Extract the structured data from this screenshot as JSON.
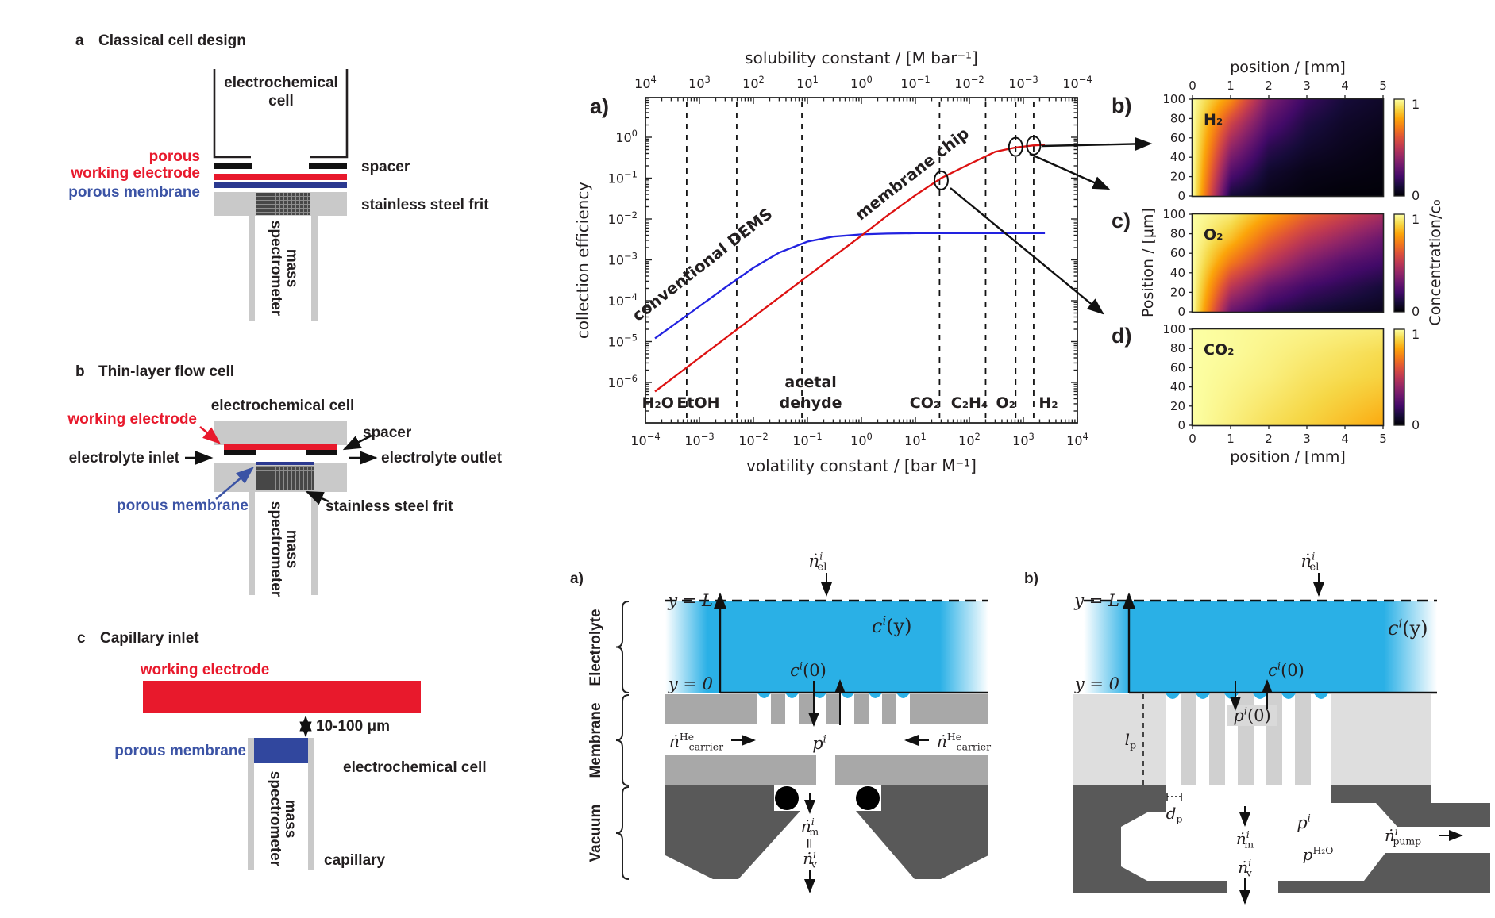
{
  "left_panels": {
    "panel_a": {
      "tag": "a",
      "title": "Classical cell design",
      "cell_label_line1": "electrochemical",
      "cell_label_line2": "cell",
      "porous_line1": "porous",
      "porous_line2": "working electrode",
      "membrane_label": "porous membrane",
      "spacer_label": "spacer",
      "frit_label": "stainless steel frit",
      "ms_line1": "mass",
      "ms_line2": "spectrometer"
    },
    "panel_b": {
      "tag": "b",
      "title": "Thin-layer flow cell",
      "cell_label": "electrochemical cell",
      "we_label": "working electrode",
      "inlet_label": "electrolyte inlet",
      "outlet_label": "electrolyte outlet",
      "spacer_label": "spacer",
      "membrane_label": "porous membrane",
      "frit_label": "stainless steel frit",
      "ms_line1": "mass",
      "ms_line2": "spectrometer"
    },
    "panel_c": {
      "tag": "c",
      "title": "Capillary inlet",
      "we_label": "working electrode",
      "gap_label": "10-100 μm",
      "membrane_label": "porous membrane",
      "cell_label": "electrochemical cell",
      "capillary_label": "capillary",
      "ms_line1": "mass",
      "ms_line2": "spectrometer"
    }
  },
  "chart_data": [
    {
      "type": "line",
      "panel_label": "a)",
      "x_bottom": {
        "label": "volatility constant / [bar M⁻¹]",
        "scale": "log",
        "tick_exponents": [
          -4,
          -3,
          -2,
          -1,
          0,
          1,
          2,
          3,
          4
        ],
        "range_exp": [
          -4,
          4
        ]
      },
      "x_top": {
        "label": "solubility constant / [M bar⁻¹]",
        "scale": "log",
        "tick_exponents": [
          4,
          3,
          2,
          1,
          0,
          -1,
          -2,
          -3,
          -4
        ]
      },
      "y_axis": {
        "label": "collection efficiency",
        "scale": "log",
        "tick_exponents": [
          0,
          -1,
          -2,
          -3,
          -4,
          -5,
          -6
        ],
        "range_exp": [
          -7,
          1
        ]
      },
      "series": [
        {
          "name": "conventional DEMS",
          "color": "#2222e0",
          "points": [
            [
              0.00015,
              1.2e-05
            ],
            [
              0.001,
              7.3e-05
            ],
            [
              0.003,
              0.00021
            ],
            [
              0.01,
              0.00064
            ],
            [
              0.03,
              0.0015
            ],
            [
              0.1,
              0.0028
            ],
            [
              0.3,
              0.0037
            ],
            [
              1,
              0.0042
            ],
            [
              3,
              0.0044
            ],
            [
              10,
              0.0045
            ],
            [
              100,
              0.0045
            ],
            [
              2500,
              0.0045
            ]
          ],
          "label_pos": [
            0.0013,
            0.0006
          ],
          "label_rotation": -38
        },
        {
          "name": "membrane chip",
          "color": "#dd1111",
          "points": [
            [
              0.00015,
              6e-07
            ],
            [
              0.001,
              4e-06
            ],
            [
              0.01,
              4e-05
            ],
            [
              0.1,
              0.0004
            ],
            [
              1,
              0.0039
            ],
            [
              3,
              0.012
            ],
            [
              10,
              0.038
            ],
            [
              30,
              0.1
            ],
            [
              100,
              0.22
            ],
            [
              300,
              0.44
            ],
            [
              700,
              0.56
            ],
            [
              1500,
              0.63
            ],
            [
              2500,
              0.65
            ]
          ],
          "label_pos": [
            10,
            0.1
          ],
          "label_rotation": -38
        }
      ],
      "dashed_vlines": [
        0.00058,
        0.0049,
        0.079,
        28,
        200,
        720,
        1550
      ],
      "species_annotations": [
        {
          "label": [
            "H₂O"
          ],
          "v": 0.00017
        },
        {
          "label": [
            "EtOH"
          ],
          "v": 0.00095
        },
        {
          "label": [
            "acetal",
            "dehyde"
          ],
          "v": 0.115
        },
        {
          "label": [
            "CO₂"
          ],
          "v": 15
        },
        {
          "label": [
            "C₂H₄"
          ],
          "v": 100
        },
        {
          "label": [
            "O₂"
          ],
          "v": 470
        },
        {
          "label": [
            "H₂"
          ],
          "v": 2900
        }
      ],
      "circle_markers": [
        [
          30,
          0.088
        ],
        [
          720,
          0.58
        ],
        [
          1550,
          0.63
        ]
      ]
    },
    {
      "type": "heatmap",
      "panel_label": "b)",
      "species_label": "H₂",
      "species_color": "#2323cc",
      "x_range": [
        0,
        5
      ],
      "y_range": [
        0,
        100
      ],
      "x_ticks": [
        0,
        1,
        2,
        3,
        4,
        5
      ],
      "y_ticks": [
        100,
        80,
        60,
        40,
        20,
        0
      ],
      "value_range": [
        0,
        1
      ],
      "grid_y_rows": [
        100,
        75,
        50,
        25,
        0
      ],
      "values": [
        [
          1,
          0.75,
          0.35,
          0.18,
          0.1,
          0.07
        ],
        [
          1,
          0.55,
          0.25,
          0.12,
          0.07,
          0.05
        ],
        [
          1,
          0.4,
          0.15,
          0.08,
          0.05,
          0.03
        ],
        [
          1,
          0.25,
          0.08,
          0.04,
          0.03,
          0.02
        ],
        [
          1,
          0.1,
          0.04,
          0.02,
          0.01,
          0.01
        ]
      ]
    },
    {
      "type": "heatmap",
      "panel_label": "c)",
      "species_label": "O₂",
      "species_color": "#111111",
      "x_range": [
        0,
        5
      ],
      "y_range": [
        0,
        100
      ],
      "x_ticks": [
        0,
        1,
        2,
        3,
        4,
        5
      ],
      "y_ticks": [
        100,
        80,
        60,
        40,
        20,
        0
      ],
      "value_range": [
        0,
        1
      ],
      "grid_y_rows": [
        100,
        75,
        50,
        25,
        0
      ],
      "values": [
        [
          1,
          0.95,
          0.8,
          0.65,
          0.55,
          0.45
        ],
        [
          1,
          0.85,
          0.65,
          0.5,
          0.4,
          0.3
        ],
        [
          1,
          0.7,
          0.5,
          0.35,
          0.25,
          0.2
        ],
        [
          1,
          0.5,
          0.3,
          0.2,
          0.15,
          0.1
        ],
        [
          1,
          0.3,
          0.15,
          0.1,
          0.07,
          0.05
        ]
      ]
    },
    {
      "type": "heatmap",
      "panel_label": "d)",
      "species_label": "CO₂",
      "species_color": "#8c1d33",
      "x_range": [
        0,
        5
      ],
      "y_range": [
        0,
        100
      ],
      "x_ticks": [
        0,
        1,
        2,
        3,
        4,
        5
      ],
      "y_ticks": [
        100,
        80,
        60,
        40,
        20,
        0
      ],
      "value_range": [
        0,
        1
      ],
      "grid_y_rows": [
        100,
        75,
        50,
        25,
        0
      ],
      "values": [
        [
          1,
          0.99,
          0.98,
          0.97,
          0.96,
          0.95
        ],
        [
          1,
          0.99,
          0.97,
          0.95,
          0.93,
          0.91
        ],
        [
          1,
          0.98,
          0.96,
          0.93,
          0.91,
          0.89
        ],
        [
          1,
          0.97,
          0.94,
          0.91,
          0.88,
          0.85
        ],
        [
          1,
          0.96,
          0.92,
          0.89,
          0.85,
          0.81
        ]
      ]
    }
  ],
  "heatmap_shared": {
    "x_label_top": "position / [mm]",
    "x_label_bottom": "position / [mm]",
    "y_label": "Position / [μm]",
    "colorbar_label": "Concentration/c₀",
    "colorbar_top_tick": "1",
    "colorbar_bottom_tick": "0",
    "colormap": [
      "#000004",
      "#160b39",
      "#420a68",
      "#6a176e",
      "#932667",
      "#bc3754",
      "#dd513a",
      "#f37819",
      "#fca50a",
      "#f6d746",
      "#fcffa4"
    ]
  },
  "schematics": {
    "panel_a_label": "a)",
    "panel_b_label": "b)",
    "region_labels": [
      "Electrolyte",
      "Membrane",
      "Vacuum"
    ],
    "y_top": "y = L",
    "y_bottom": "y = 0",
    "math_labels": {
      "n_el": {
        "base": "ṅ",
        "sup": "i",
        "sub": "el"
      },
      "c_y": {
        "base": "c",
        "sup": "i",
        "tail": "(y)"
      },
      "c_0": {
        "base": "c",
        "sup": "i",
        "tail": "(0)"
      },
      "p_i": {
        "base": "p",
        "sup": "i"
      },
      "p_i_0": {
        "base": "p",
        "sup": "i",
        "tail": "(0)"
      },
      "n_carrier": {
        "base": "ṅ",
        "sup": "He",
        "sub": "carrier"
      },
      "n_m": {
        "base": "ṅ",
        "sup": "i",
        "sub": "m"
      },
      "n_v": {
        "base": "ṅ",
        "sup": "i",
        "sub": "v"
      },
      "n_pump": {
        "base": "ṅ",
        "sup": "i",
        "sub": "pump"
      },
      "p_h2o": {
        "base": "p",
        "sup": "H₂O"
      },
      "l_p": {
        "base": "l",
        "sub": "p"
      },
      "d_p": {
        "base": "d",
        "sub": "p"
      },
      "equals": "="
    }
  }
}
